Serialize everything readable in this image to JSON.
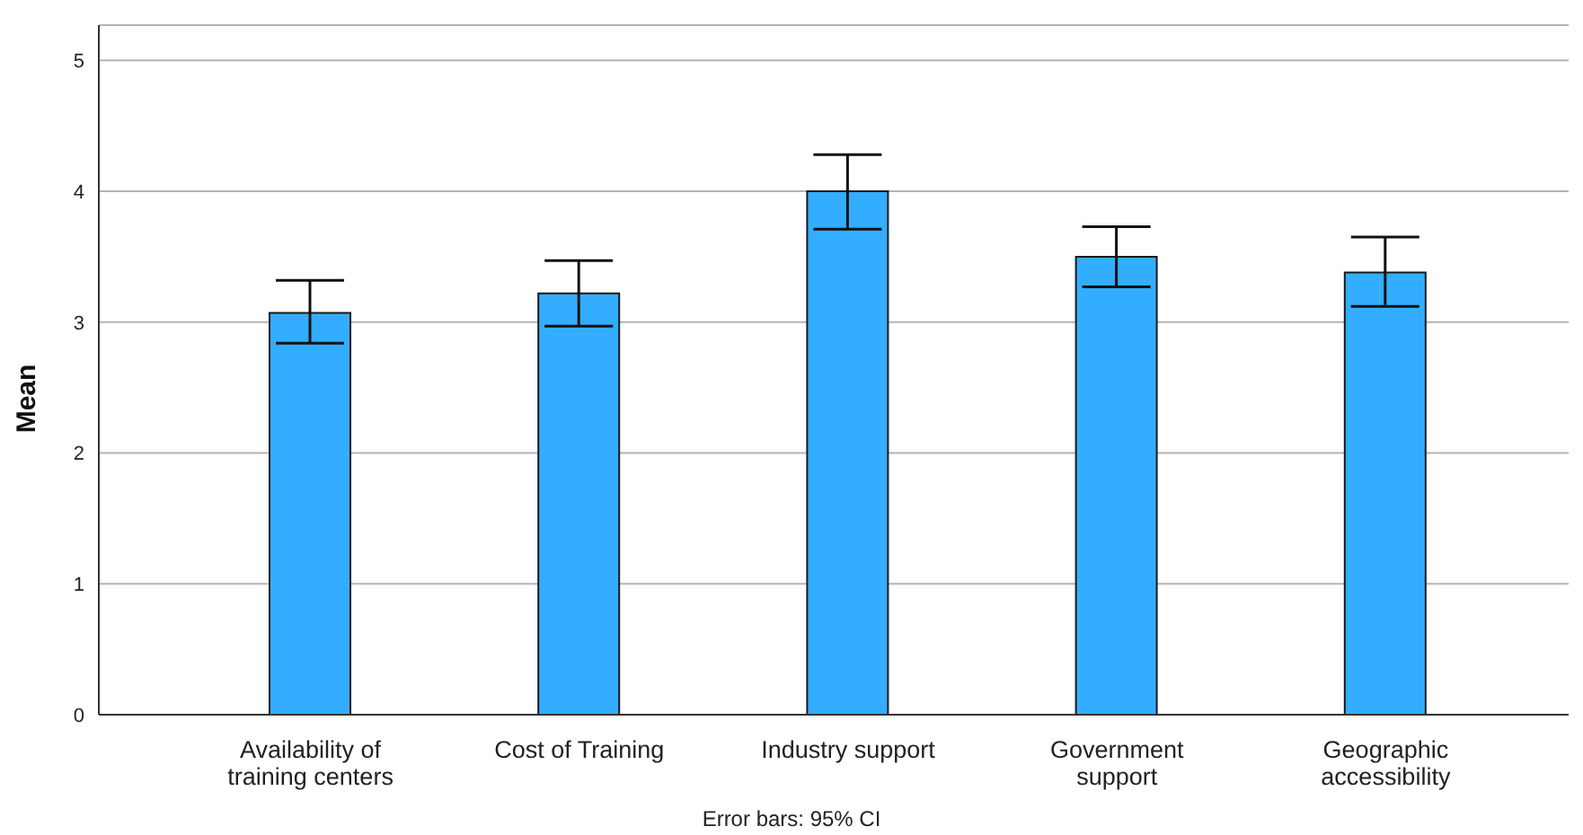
{
  "chart_data": {
    "type": "bar",
    "ylabel": "Mean",
    "categories": [
      "Availability of training centers",
      "Cost of Training",
      "Industry support",
      "Government support",
      "Geographic accessibility"
    ],
    "values": [
      3.07,
      3.22,
      4.0,
      3.5,
      3.38
    ],
    "errors": [
      [
        2.84,
        3.32
      ],
      [
        2.97,
        3.47
      ],
      [
        3.71,
        4.28
      ],
      [
        3.27,
        3.73
      ],
      [
        3.12,
        3.65
      ]
    ],
    "color": "#33adff",
    "ylim": [
      0,
      5.27
    ],
    "yticks": [
      0,
      1,
      2,
      3,
      4,
      5
    ],
    "grid": "y",
    "legend": false,
    "annotations": [
      "Error bars: 95% CI"
    ]
  }
}
